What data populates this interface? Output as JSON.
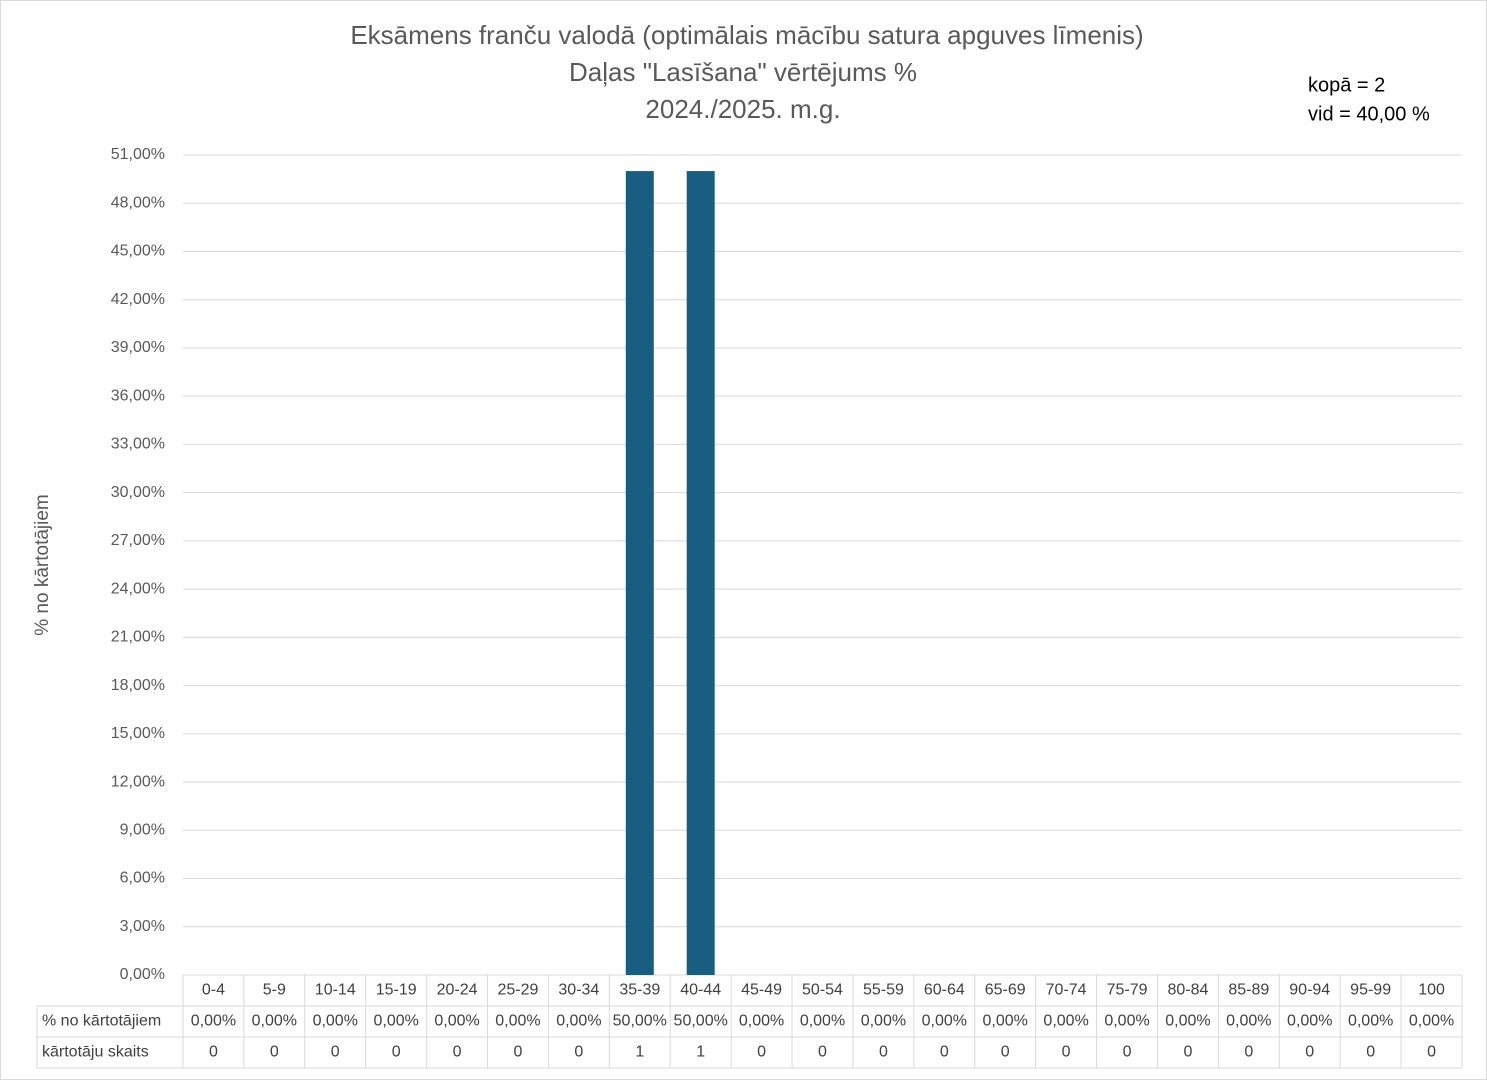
{
  "chart_data": {
    "type": "bar",
    "title_lines": [
      "Eksāmens franču valodā (optimālais mācību satura apguves līmenis)",
      "Daļas \"Lasīšana\" vērtējums %",
      "2024./2025. m.g."
    ],
    "annotations": [
      "kopā = 2",
      "vid = 40,00 %"
    ],
    "y_label": "% no kārtotājiem",
    "categories": [
      "0-4",
      "5-9",
      "10-14",
      "15-19",
      "20-24",
      "25-29",
      "30-34",
      "35-39",
      "40-44",
      "45-49",
      "50-54",
      "55-59",
      "60-64",
      "65-69",
      "70-74",
      "75-79",
      "80-84",
      "85-89",
      "90-94",
      "95-99",
      "100"
    ],
    "series": [
      {
        "name": "% no kārtotājiem",
        "color": "#175e80",
        "values": [
          0,
          0,
          0,
          0,
          0,
          0,
          0,
          50,
          50,
          0,
          0,
          0,
          0,
          0,
          0,
          0,
          0,
          0,
          0,
          0,
          0
        ],
        "value_labels": [
          "0,00%",
          "0,00%",
          "0,00%",
          "0,00%",
          "0,00%",
          "0,00%",
          "0,00%",
          "50,00%",
          "50,00%",
          "0,00%",
          "0,00%",
          "0,00%",
          "0,00%",
          "0,00%",
          "0,00%",
          "0,00%",
          "0,00%",
          "0,00%",
          "0,00%",
          "0,00%",
          "0,00%"
        ]
      }
    ],
    "counts": {
      "name": "kārtotāju skaits",
      "values": [
        0,
        0,
        0,
        0,
        0,
        0,
        0,
        1,
        1,
        0,
        0,
        0,
        0,
        0,
        0,
        0,
        0,
        0,
        0,
        0,
        0
      ]
    },
    "ylim": [
      0,
      51
    ],
    "yticks": [
      {
        "value": 0,
        "label": "0,00%"
      },
      {
        "value": 3,
        "label": "3,00%"
      },
      {
        "value": 6,
        "label": "6,00%"
      },
      {
        "value": 9,
        "label": "9,00%"
      },
      {
        "value": 12,
        "label": "12,00%"
      },
      {
        "value": 15,
        "label": "15,00%"
      },
      {
        "value": 18,
        "label": "18,00%"
      },
      {
        "value": 21,
        "label": "21,00%"
      },
      {
        "value": 24,
        "label": "24,00%"
      },
      {
        "value": 27,
        "label": "27,00%"
      },
      {
        "value": 30,
        "label": "30,00%"
      },
      {
        "value": 33,
        "label": "33,00%"
      },
      {
        "value": 36,
        "label": "36,00%"
      },
      {
        "value": 39,
        "label": "39,00%"
      },
      {
        "value": 42,
        "label": "42,00%"
      },
      {
        "value": 45,
        "label": "45,00%"
      },
      {
        "value": 48,
        "label": "48,00%"
      },
      {
        "value": 51,
        "label": "51,00%"
      }
    ],
    "grid": true
  }
}
